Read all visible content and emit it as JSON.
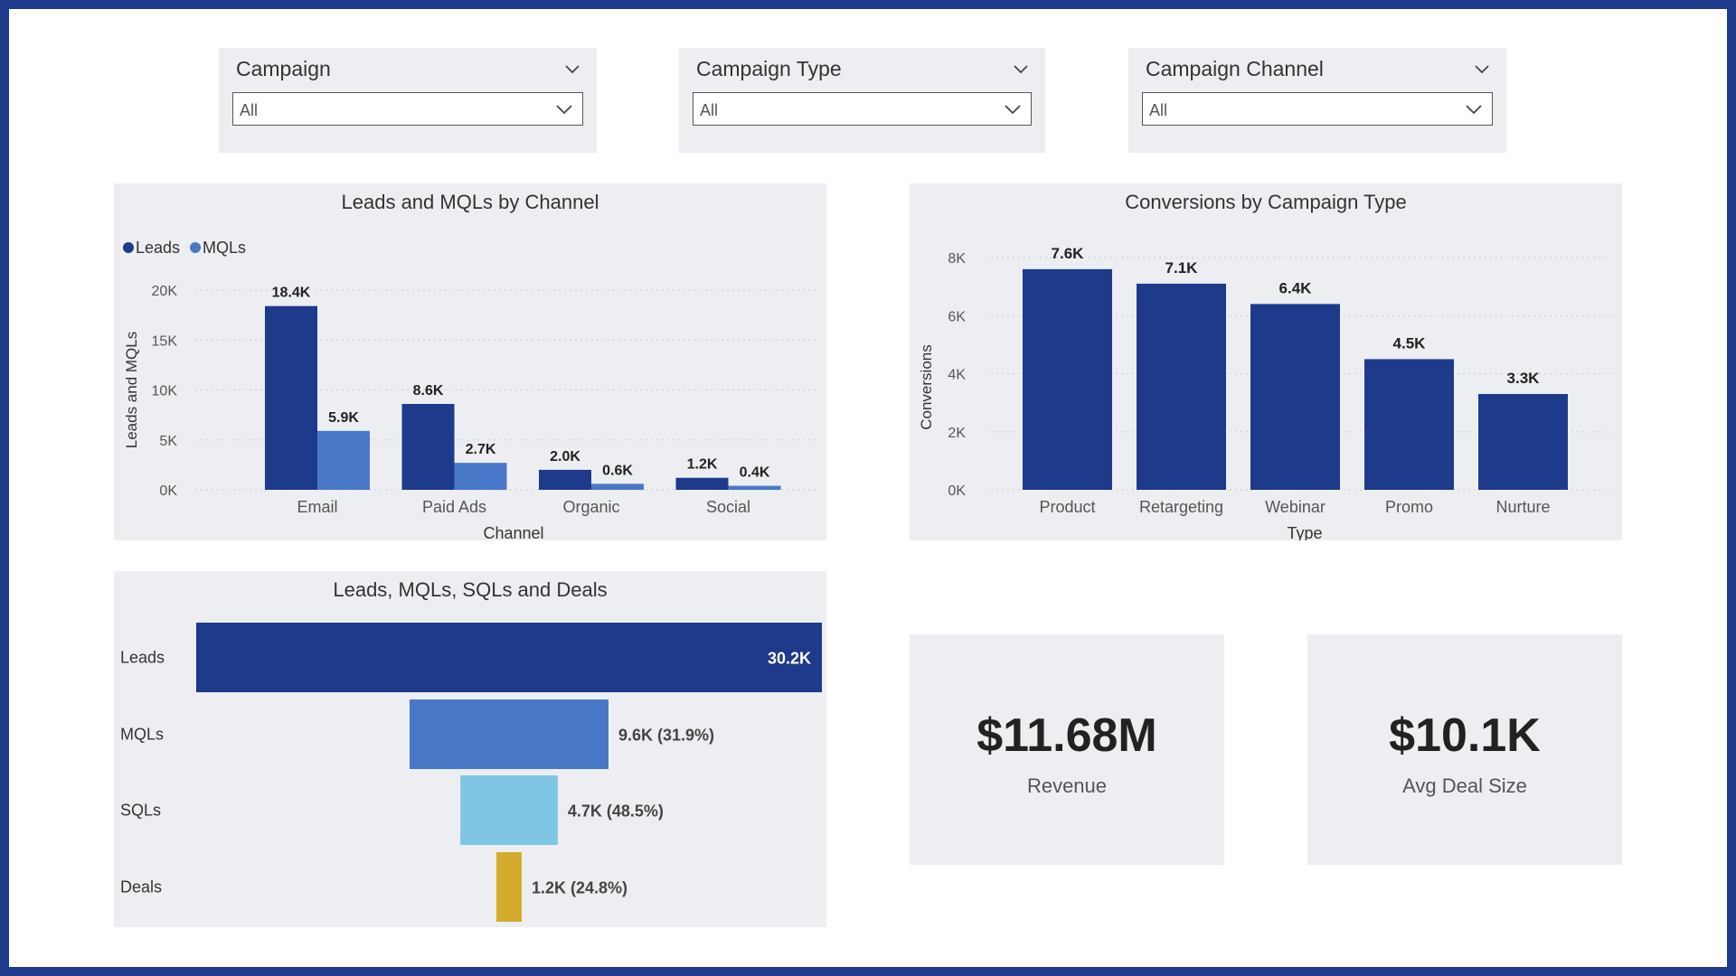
{
  "slicers": [
    {
      "title": "Campaign",
      "value": "All"
    },
    {
      "title": "Campaign Type",
      "value": "All"
    },
    {
      "title": "Campaign Channel",
      "value": "All"
    }
  ],
  "colors": {
    "leads": "#1e3a8a",
    "mqls": "#4a78c8",
    "sqls": "#7ec6e4",
    "deals": "#d4ab2c",
    "grid": "#c8ccd2",
    "axis_text": "#555555",
    "label_text": "#222222"
  },
  "charts": {
    "leads_mqls": {
      "title": "Leads and MQLs by Channel",
      "chart_data": {
        "type": "bar",
        "title": "Leads and MQLs by Channel",
        "xlabel": "Channel",
        "ylabel": "Leads and MQLs",
        "categories": [
          "Email",
          "Paid Ads",
          "Organic",
          "Social"
        ],
        "series": [
          {
            "name": "Leads",
            "values": [
              18400,
              8600,
              2000,
              1200
            ],
            "labels": [
              "18.4K",
              "8.6K",
              "2.0K",
              "1.2K"
            ]
          },
          {
            "name": "MQLs",
            "values": [
              5900,
              2700,
              600,
              400
            ],
            "labels": [
              "5.9K",
              "2.7K",
              "0.6K",
              "0.4K"
            ]
          }
        ],
        "ylim": [
          0,
          20000
        ],
        "yticks": [
          0,
          5000,
          10000,
          15000,
          20000
        ],
        "ytick_labels": [
          "0K",
          "5K",
          "10K",
          "15K",
          "20K"
        ],
        "grid": true,
        "legend": "top-left"
      }
    },
    "conversions": {
      "title": "Conversions by Campaign Type",
      "chart_data": {
        "type": "bar",
        "title": "Conversions by Campaign Type",
        "xlabel": "Type",
        "ylabel": "Conversions",
        "categories": [
          "Product",
          "Retargeting",
          "Webinar",
          "Promo",
          "Nurture"
        ],
        "series": [
          {
            "name": "Conversions",
            "values": [
              7600,
              7100,
              6400,
              4500,
              3300
            ],
            "labels": [
              "7.6K",
              "7.1K",
              "6.4K",
              "4.5K",
              "3.3K"
            ]
          }
        ],
        "ylim": [
          0,
          8000
        ],
        "yticks": [
          0,
          2000,
          4000,
          6000,
          8000
        ],
        "ytick_labels": [
          "0K",
          "2K",
          "4K",
          "6K",
          "8K"
        ],
        "grid": true
      }
    },
    "funnel": {
      "title": "Leads, MQLs, SQLs and Deals",
      "chart_data": {
        "type": "funnel",
        "title": "Leads, MQLs, SQLs and Deals",
        "stages": [
          {
            "name": "Leads",
            "value": 30200,
            "label": "30.2K"
          },
          {
            "name": "MQLs",
            "value": 9600,
            "label": "9.6K (31.9%)"
          },
          {
            "name": "SQLs",
            "value": 4700,
            "label": "4.7K (48.5%)"
          },
          {
            "name": "Deals",
            "value": 1200,
            "label": "1.2K (24.8%)"
          }
        ]
      }
    }
  },
  "kpis": [
    {
      "value": "$11.68M",
      "label": "Revenue"
    },
    {
      "value": "$10.1K",
      "label": "Avg Deal Size"
    }
  ]
}
